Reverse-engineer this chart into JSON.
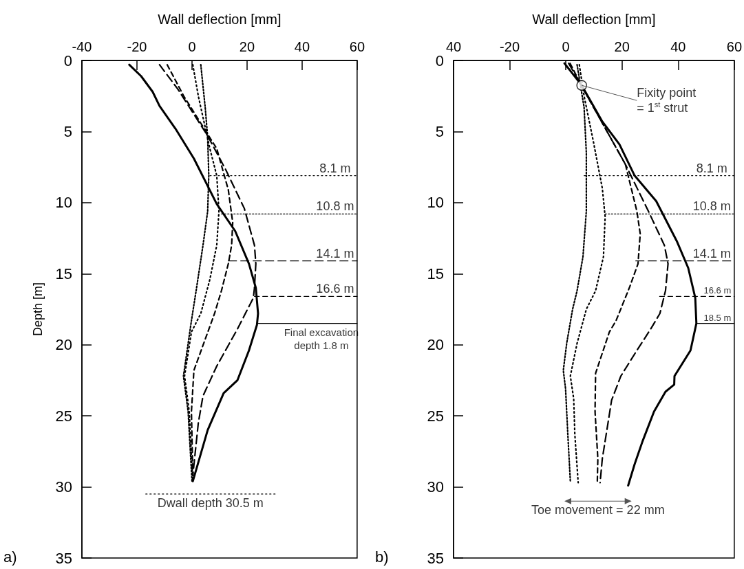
{
  "chart_data": [
    {
      "type": "line",
      "title": "a)",
      "xlabel": "Wall deflection [mm]",
      "ylabel": "Depth [m]",
      "xlim": [
        -40,
        60
      ],
      "xticks": [
        -40,
        -20,
        0,
        20,
        40,
        60
      ],
      "ylim": [
        35,
        0
      ],
      "yticks": [
        0,
        5,
        10,
        15,
        20,
        25,
        30,
        35
      ],
      "grid": false,
      "series": [
        {
          "color": "#000000",
          "line_style": "solid",
          "x": [
            -22.8,
            -18.5,
            -14.3,
            -11.8,
            -6,
            0.7,
            9,
            15.7,
            20.7,
            23.2,
            24,
            23.6,
            20.7,
            16.5,
            11.5,
            5.7,
            0.3
          ],
          "values": [
            0.3,
            1.1,
            2.2,
            3.2,
            4.8,
            6.9,
            10.1,
            12,
            14.3,
            16,
            17.8,
            18.6,
            20.4,
            22.5,
            23.4,
            26,
            29.6
          ]
        },
        {
          "color": "#000000",
          "line_style": "dashed",
          "x": [
            -11.8,
            -5.2,
            5.7,
            12.3,
            19,
            22.7,
            23.2,
            22.7,
            22.3,
            16.5,
            9,
            4,
            2.3,
            0.3
          ],
          "values": [
            0.3,
            2,
            5.3,
            7.7,
            10.4,
            13,
            14.3,
            16,
            16.7,
            18.9,
            21.5,
            23.6,
            25.5,
            29.2
          ]
        },
        {
          "color": "#000000",
          "line_style": "dashed",
          "x": [
            -9,
            -3,
            9,
            13.2,
            14.8,
            14.4,
            13.2,
            10.7,
            8.2,
            0.7,
            -0.2,
            0.3
          ],
          "values": [
            0.3,
            2.5,
            6.2,
            9.1,
            11.4,
            13,
            14.3,
            16.2,
            17.8,
            21.8,
            24.7,
            29.2
          ]
        },
        {
          "color": "#000000",
          "line_style": "dotted",
          "x": [
            0.3,
            2.3,
            6.5,
            9,
            9.8,
            9,
            6.5,
            3.2,
            -0.2,
            -2.7,
            -1,
            0.3
          ],
          "values": [
            0.3,
            2.5,
            6.2,
            8.1,
            10.6,
            13,
            15.4,
            17.8,
            19.1,
            22.2,
            24.7,
            29.6
          ]
        },
        {
          "color": "#000000",
          "line_style": "dotted",
          "x": [
            3.2,
            4.8,
            5.7,
            6.1,
            5.7,
            4,
            1.5,
            -0.2,
            -3.1,
            -1.4,
            0
          ],
          "values": [
            0.3,
            3.3,
            5.4,
            8.1,
            10.6,
            13,
            16.2,
            18.3,
            22.2,
            24.7,
            29.6
          ]
        },
        {
          "color": "#000000",
          "line_style": "dotted",
          "x": [
            6.5,
            60
          ],
          "values": [
            8.1,
            8.1
          ]
        },
        {
          "color": "#000000",
          "line_style": "dotted",
          "x": [
            10.7,
            60
          ],
          "values": [
            10.8,
            10.8
          ]
        },
        {
          "color": "#000000",
          "line_style": "dashed",
          "x": [
            13.2,
            60
          ],
          "values": [
            14.1,
            14.1
          ]
        },
        {
          "color": "#000000",
          "line_style": "dashed",
          "x": [
            22.7,
            60
          ],
          "values": [
            16.6,
            16.6
          ]
        },
        {
          "color": "#000000",
          "line_style": "solid",
          "x": [
            24,
            60
          ],
          "values": [
            18.5,
            18.5
          ]
        },
        {
          "color": "#000000",
          "line_style": "dotted",
          "x": [
            -16.8,
            30.2
          ],
          "values": [
            30.5,
            30.5
          ]
        }
      ],
      "annotations": [
        {
          "text": "8.1 m",
          "x": 52,
          "y": 8.1
        },
        {
          "text": "10.8 m",
          "x": 52,
          "y": 10.8
        },
        {
          "text": "14.1 m",
          "x": 52,
          "y": 14.1
        },
        {
          "text": "16.6 m",
          "x": 52,
          "y": 16.6
        },
        {
          "text": "Final excavation\ndepth 1.8 m",
          "x": 47,
          "y": 18.5
        },
        {
          "text": "Dwall depth 30.5 m",
          "x": 6.7,
          "y": 30.5
        }
      ]
    },
    {
      "type": "line",
      "title": "b)",
      "xlabel": "Wall deflection [mm]",
      "xlim": [
        -40,
        60
      ],
      "xticks": [
        {
          "value": -40,
          "label": "40"
        },
        -20,
        0,
        20,
        40,
        60
      ],
      "ylim": [
        35,
        0
      ],
      "yticks": [
        0,
        5,
        10,
        15,
        20,
        25,
        30,
        35
      ],
      "grid": false,
      "series": [
        {
          "color": "#000000",
          "line_style": "solid",
          "x": [
            -0.5,
            5.65,
            13,
            19.1,
            24.5,
            32.2,
            39.5,
            43.6,
            46.1,
            46.5,
            44.4,
            38.7,
            38.6,
            35.5,
            31.4,
            27.3,
            24.5,
            22.2
          ],
          "values": [
            0.2,
            1.75,
            4.3,
            5.9,
            8.1,
            9.9,
            12.7,
            14.6,
            16.7,
            18.5,
            20.4,
            22.2,
            22.8,
            23.3,
            24.7,
            26.8,
            28.4,
            29.9
          ]
        },
        {
          "color": "#000000",
          "line_style": "dashed",
          "x": [
            1,
            5.65,
            21.2,
            29.4,
            35.1,
            36.4,
            35.5,
            33.5,
            30.2,
            25.3,
            19.6,
            16.3,
            14.7,
            13,
            12.2
          ],
          "values": [
            0.2,
            1.8,
            7.3,
            10.6,
            13,
            14.3,
            16.2,
            17.8,
            18.9,
            20.4,
            22.2,
            23.9,
            25.9,
            28,
            29.7
          ]
        },
        {
          "color": "#000000",
          "line_style": "dashed",
          "x": [
            1.5,
            5.65,
            21.2,
            25.3,
            26.5,
            25.7,
            22.8,
            17.9,
            15.5,
            10.6,
            10.4,
            11.4,
            11.2
          ],
          "values": [
            0.2,
            1.8,
            7.3,
            10.6,
            12.2,
            14.3,
            15.9,
            18.3,
            19.1,
            22,
            24.7,
            28,
            29.7
          ]
        },
        {
          "color": "#000000",
          "line_style": "dotted",
          "x": [
            4.8,
            6.5,
            9.8,
            13,
            14,
            13.4,
            10.6,
            7.3,
            4,
            1.6,
            2.8,
            3.2,
            4.4
          ],
          "values": [
            0.3,
            2.5,
            5.7,
            9,
            11,
            13.8,
            16.2,
            17.5,
            19.9,
            22.2,
            23.8,
            26.3,
            29.7
          ]
        },
        {
          "color": "#000000",
          "line_style": "dotted",
          "x": [
            4,
            6.5,
            7.3,
            7.3,
            6.1,
            4,
            2.4,
            0.3,
            -0.9,
            -0.1,
            0.7,
            1.6
          ],
          "values": [
            0.3,
            3.3,
            6.5,
            10.6,
            13.8,
            16.2,
            17.5,
            19.9,
            21.8,
            23.1,
            26.3,
            29.6
          ]
        },
        {
          "color": "#000000",
          "line_style": "dotted",
          "x": [
            6.5,
            60
          ],
          "values": [
            8.1,
            8.1
          ]
        },
        {
          "color": "#000000",
          "line_style": "dotted",
          "x": [
            14,
            60
          ],
          "values": [
            10.8,
            10.8
          ]
        },
        {
          "color": "#000000",
          "line_style": "dashed",
          "x": [
            24.9,
            60
          ],
          "values": [
            14.1,
            14.1
          ]
        },
        {
          "color": "#000000",
          "line_style": "dashed",
          "x": [
            33.4,
            60
          ],
          "values": [
            16.6,
            16.6
          ]
        },
        {
          "color": "#000000",
          "line_style": "solid",
          "x": [
            46.5,
            60
          ],
          "values": [
            18.5,
            18.5
          ]
        },
        {
          "color": "#555555",
          "line_style": "solid",
          "marker": "triangle",
          "x": [
            0.7,
            22.2
          ],
          "values": [
            31,
            31
          ]
        },
        {
          "type": "scatter",
          "color": "#000000",
          "marker": "circle",
          "x": [
            5.65
          ],
          "values": [
            1.75
          ]
        }
      ],
      "annotations": [
        {
          "text": "Fixity point\n= 1$^{st}$ strut",
          "x": 5.65,
          "y": 1.75
        },
        {
          "text": "8.1 m",
          "x": 52,
          "y": 8.1
        },
        {
          "text": "10.8 m",
          "x": 52,
          "y": 10.8
        },
        {
          "text": "14.1 m",
          "x": 52,
          "y": 14.1
        },
        {
          "text": "16.6 m",
          "x": 54,
          "y": 16.6
        },
        {
          "text": "18.5 m",
          "x": 54,
          "y": 18.5
        },
        {
          "text": "Toe movement = 22 mm",
          "x": 11.45,
          "y": 31
        }
      ]
    }
  ]
}
